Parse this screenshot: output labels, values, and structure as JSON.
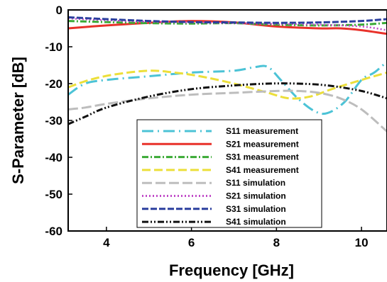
{
  "chart_data": {
    "type": "line",
    "xlabel": "Frequency [GHz]",
    "ylabel": "S-Parameter [dB]",
    "xlim": [
      3.1,
      10.6
    ],
    "ylim": [
      -60,
      0
    ],
    "x_ticks": [
      4,
      6,
      8,
      10
    ],
    "y_ticks": [
      0,
      -10,
      -20,
      -30,
      -40,
      -50,
      -60
    ],
    "grid": false,
    "legend_position": "bottom-right",
    "series": [
      {
        "name": "S11 measurement",
        "color": "#4cc3d6",
        "dash": "16,6,2,6",
        "points": [
          [
            3.1,
            -23
          ],
          [
            3.5,
            -20
          ],
          [
            4,
            -19
          ],
          [
            5,
            -18
          ],
          [
            6,
            -17
          ],
          [
            7,
            -16.5
          ],
          [
            7.5,
            -15.5
          ],
          [
            7.8,
            -15.5
          ],
          [
            8.1,
            -19
          ],
          [
            8.5,
            -24
          ],
          [
            8.9,
            -27.5
          ],
          [
            9.2,
            -28
          ],
          [
            9.6,
            -25
          ],
          [
            10,
            -19
          ],
          [
            10.3,
            -17
          ],
          [
            10.6,
            -14
          ]
        ]
      },
      {
        "name": "S21 measurement",
        "color": "#e8312a",
        "dash": "",
        "points": [
          [
            3.1,
            -5
          ],
          [
            4,
            -4.2
          ],
          [
            5,
            -3.5
          ],
          [
            6,
            -3
          ],
          [
            7,
            -3.4
          ],
          [
            8,
            -4.5
          ],
          [
            9,
            -5
          ],
          [
            9.5,
            -5
          ],
          [
            10,
            -5.5
          ],
          [
            10.6,
            -6.5
          ]
        ]
      },
      {
        "name": "S31 measurement",
        "color": "#3aaa35",
        "dash": "9,3,2,3",
        "points": [
          [
            3.1,
            -3
          ],
          [
            4,
            -3.3
          ],
          [
            5,
            -3.6
          ],
          [
            6,
            -3.7
          ],
          [
            7,
            -3.6
          ],
          [
            8,
            -4
          ],
          [
            9,
            -4.2
          ],
          [
            10,
            -4
          ],
          [
            10.6,
            -3.5
          ]
        ]
      },
      {
        "name": "S41 measurement",
        "color": "#ecdf3a",
        "dash": "12,5",
        "points": [
          [
            3.1,
            -21
          ],
          [
            3.6,
            -19
          ],
          [
            4.2,
            -17.5
          ],
          [
            5,
            -16.5
          ],
          [
            5.6,
            -17
          ],
          [
            6.2,
            -18
          ],
          [
            7,
            -20
          ],
          [
            7.8,
            -22.5
          ],
          [
            8.3,
            -24
          ],
          [
            8.8,
            -23.5
          ],
          [
            9.3,
            -21.5
          ],
          [
            10,
            -19
          ],
          [
            10.6,
            -17
          ]
        ]
      },
      {
        "name": "S11 simulation",
        "color": "#bdbdbd",
        "dash": "14,5",
        "points": [
          [
            3.1,
            -27
          ],
          [
            3.5,
            -26.5
          ],
          [
            4,
            -25.5
          ],
          [
            5,
            -24
          ],
          [
            6,
            -23
          ],
          [
            7,
            -22.5
          ],
          [
            8,
            -22
          ],
          [
            8.5,
            -22
          ],
          [
            9,
            -22.5
          ],
          [
            9.5,
            -24
          ],
          [
            10,
            -27
          ],
          [
            10.6,
            -33
          ]
        ]
      },
      {
        "name": "S21 simulation",
        "color": "#c14bc8",
        "dash": "2,3",
        "points": [
          [
            3.1,
            -2.3
          ],
          [
            4,
            -2.8
          ],
          [
            5,
            -3.2
          ],
          [
            6,
            -3.4
          ],
          [
            7,
            -3.6
          ],
          [
            8,
            -3.8
          ],
          [
            9,
            -4
          ],
          [
            10,
            -4.5
          ],
          [
            10.6,
            -5.5
          ]
        ]
      },
      {
        "name": "S31 simulation",
        "color": "#2b3f9e",
        "dash": "9,3",
        "points": [
          [
            3.1,
            -2
          ],
          [
            4,
            -2.5
          ],
          [
            5,
            -3
          ],
          [
            6,
            -3.3
          ],
          [
            7,
            -3.4
          ],
          [
            8,
            -3.5
          ],
          [
            9,
            -3.4
          ],
          [
            10,
            -3
          ],
          [
            10.6,
            -2.5
          ]
        ]
      },
      {
        "name": "S41 simulation",
        "color": "#111111",
        "dash": "9,3,2,3,2,3",
        "points": [
          [
            3.1,
            -31
          ],
          [
            3.5,
            -29
          ],
          [
            4,
            -26.5
          ],
          [
            5,
            -23.5
          ],
          [
            6,
            -21.5
          ],
          [
            7,
            -20.5
          ],
          [
            7.8,
            -20
          ],
          [
            8.5,
            -20
          ],
          [
            9.2,
            -20.5
          ],
          [
            10,
            -22
          ],
          [
            10.6,
            -24
          ]
        ]
      }
    ]
  }
}
